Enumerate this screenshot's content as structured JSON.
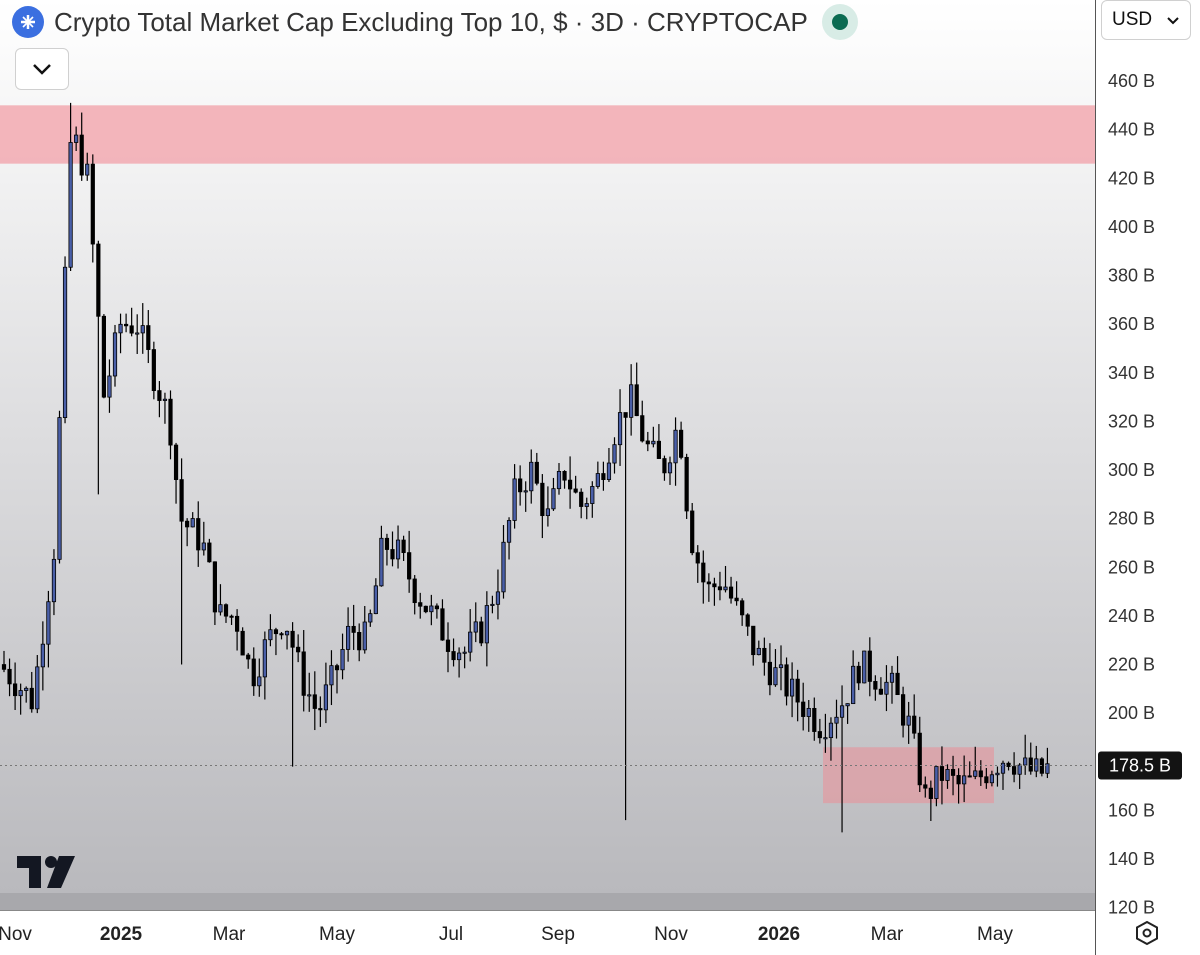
{
  "header": {
    "title": "Crypto Total Market Cap Excluding Top 10, $ · 3D · CRYPTOCAP",
    "logo_icon": "crypto-index-icon",
    "status_color": "#0b6b52"
  },
  "controls": {
    "collapse_icon": "chevron-down-icon",
    "currency_label": "USD",
    "currency_icon": "chevron-down-icon",
    "settings_icon": "settings-hexagon-icon",
    "brand_logo": "tradingview-logo"
  },
  "chart_data": {
    "type": "candlestick",
    "title": "Crypto Total Market Cap Excluding Top 10, $ · 3D · CRYPTOCAP",
    "y_unit": "B",
    "ylim": [
      120,
      470
    ],
    "y_ticks": [
      "460 B",
      "440 B",
      "420 B",
      "400 B",
      "380 B",
      "360 B",
      "340 B",
      "320 B",
      "300 B",
      "280 B",
      "260 B",
      "240 B",
      "220 B",
      "200 B",
      "160 B",
      "140 B",
      "120 B"
    ],
    "x_ticks": [
      "Nov",
      "2025",
      "Mar",
      "May",
      "Jul",
      "Sep",
      "Nov",
      "2026",
      "Mar",
      "May"
    ],
    "last_price": 178.5,
    "last_price_label": "178.5 B",
    "zones": [
      {
        "name": "resistance",
        "y_from": 426,
        "y_to": 450,
        "color": "#f2a9b0"
      },
      {
        "name": "current range",
        "y_from": 163,
        "y_to": 186,
        "color": "#e39aa1"
      }
    ],
    "close_path": [
      [
        0.0,
        220
      ],
      [
        0.03,
        205
      ],
      [
        0.05,
        270
      ],
      [
        0.065,
        440
      ],
      [
        0.08,
        420
      ],
      [
        0.095,
        330
      ],
      [
        0.11,
        360
      ],
      [
        0.125,
        360
      ],
      [
        0.14,
        340
      ],
      [
        0.155,
        320
      ],
      [
        0.165,
        280
      ],
      [
        0.185,
        270
      ],
      [
        0.2,
        240
      ],
      [
        0.215,
        240
      ],
      [
        0.23,
        215
      ],
      [
        0.245,
        230
      ],
      [
        0.26,
        240
      ],
      [
        0.275,
        215
      ],
      [
        0.29,
        200
      ],
      [
        0.305,
        215
      ],
      [
        0.32,
        235
      ],
      [
        0.335,
        230
      ],
      [
        0.35,
        270
      ],
      [
        0.365,
        265
      ],
      [
        0.38,
        250
      ],
      [
        0.395,
        240
      ],
      [
        0.41,
        230
      ],
      [
        0.425,
        225
      ],
      [
        0.44,
        235
      ],
      [
        0.455,
        255
      ],
      [
        0.47,
        290
      ],
      [
        0.485,
        300
      ],
      [
        0.5,
        280
      ],
      [
        0.515,
        300
      ],
      [
        0.53,
        285
      ],
      [
        0.545,
        295
      ],
      [
        0.56,
        315
      ],
      [
        0.575,
        330
      ],
      [
        0.59,
        310
      ],
      [
        0.605,
        300
      ],
      [
        0.62,
        320
      ],
      [
        0.63,
        275
      ],
      [
        0.645,
        250
      ],
      [
        0.66,
        255
      ],
      [
        0.675,
        240
      ],
      [
        0.69,
        225
      ],
      [
        0.71,
        215
      ],
      [
        0.73,
        205
      ],
      [
        0.75,
        195
      ],
      [
        0.77,
        205
      ],
      [
        0.785,
        220
      ],
      [
        0.8,
        215
      ],
      [
        0.815,
        210
      ],
      [
        0.83,
        195
      ],
      [
        0.845,
        165
      ],
      [
        0.86,
        175
      ],
      [
        0.875,
        170
      ],
      [
        0.89,
        172
      ],
      [
        0.905,
        178
      ],
      [
        0.92,
        183
      ],
      [
        0.935,
        177
      ],
      [
        0.95,
        175
      ],
      [
        0.96,
        178.5
      ]
    ]
  }
}
